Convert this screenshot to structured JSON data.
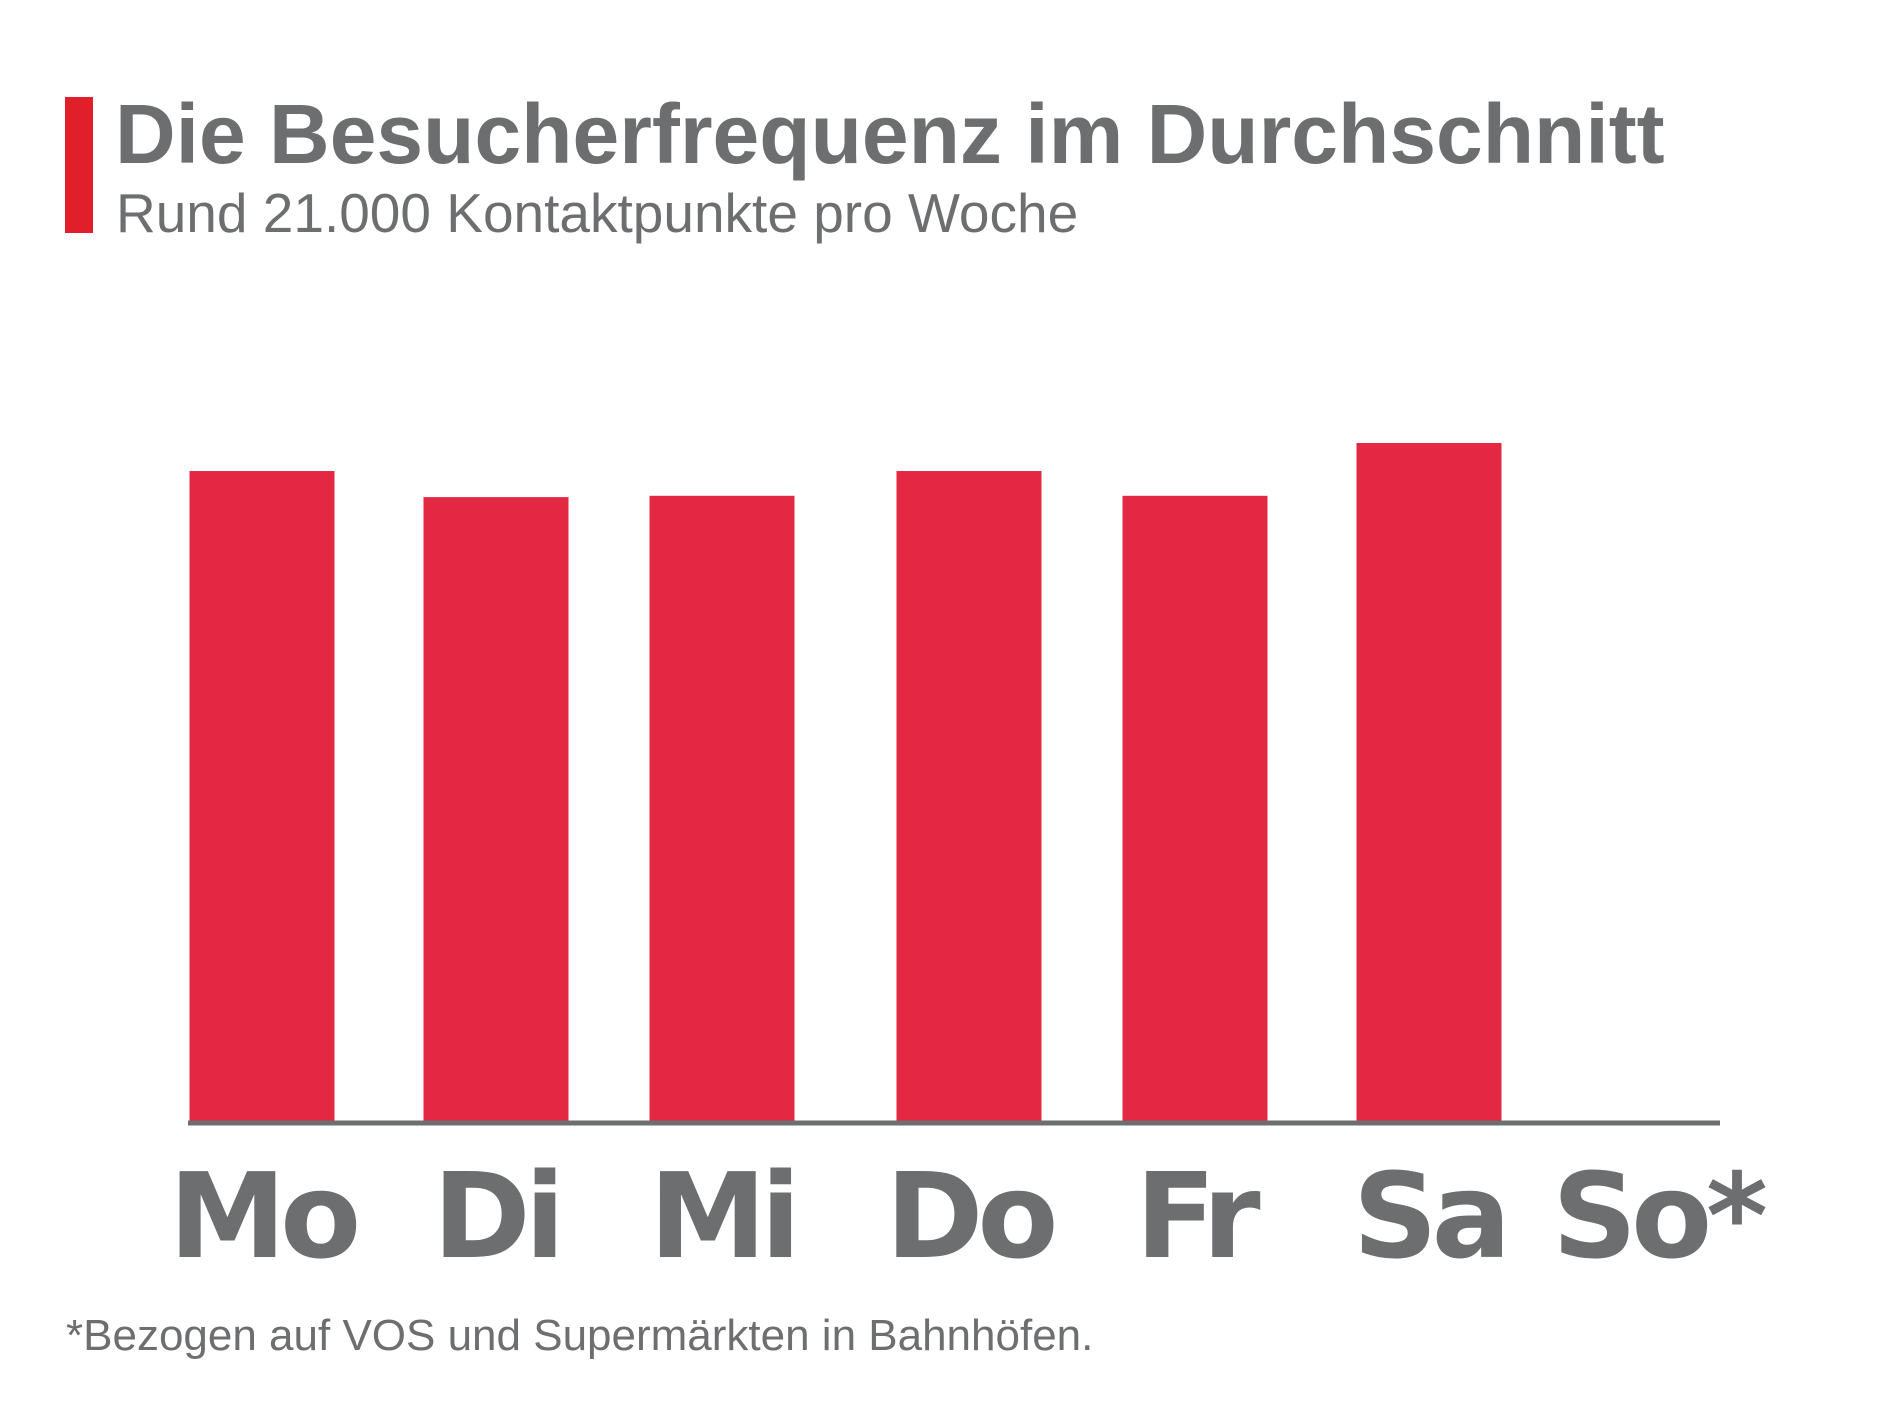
{
  "header": {
    "title": "Die Besucherfrequenz im Durchschnitt",
    "subtitle": "Rund 21.000 Kontaktpunkte pro Woche"
  },
  "footnote": "*Bezogen auf VOS und Supermärkten in Bahnhöfen.",
  "colors": {
    "accent": "#e11f2b",
    "bar": "#e42742",
    "text": "#6d6e70",
    "axis": "#6d6e70"
  },
  "chart_data": {
    "type": "bar",
    "categories": [
      "Mo",
      "Di",
      "Mi",
      "Do",
      "Fr",
      "Sa",
      "So*"
    ],
    "values": [
      100,
      96,
      96.2,
      100,
      96.2,
      104.3,
      0
    ],
    "value_note": "relative bar heights, no value axis shown",
    "xlabel": "",
    "ylabel": "",
    "ylim": [
      0,
      110
    ],
    "grid": false,
    "legend": "none"
  }
}
